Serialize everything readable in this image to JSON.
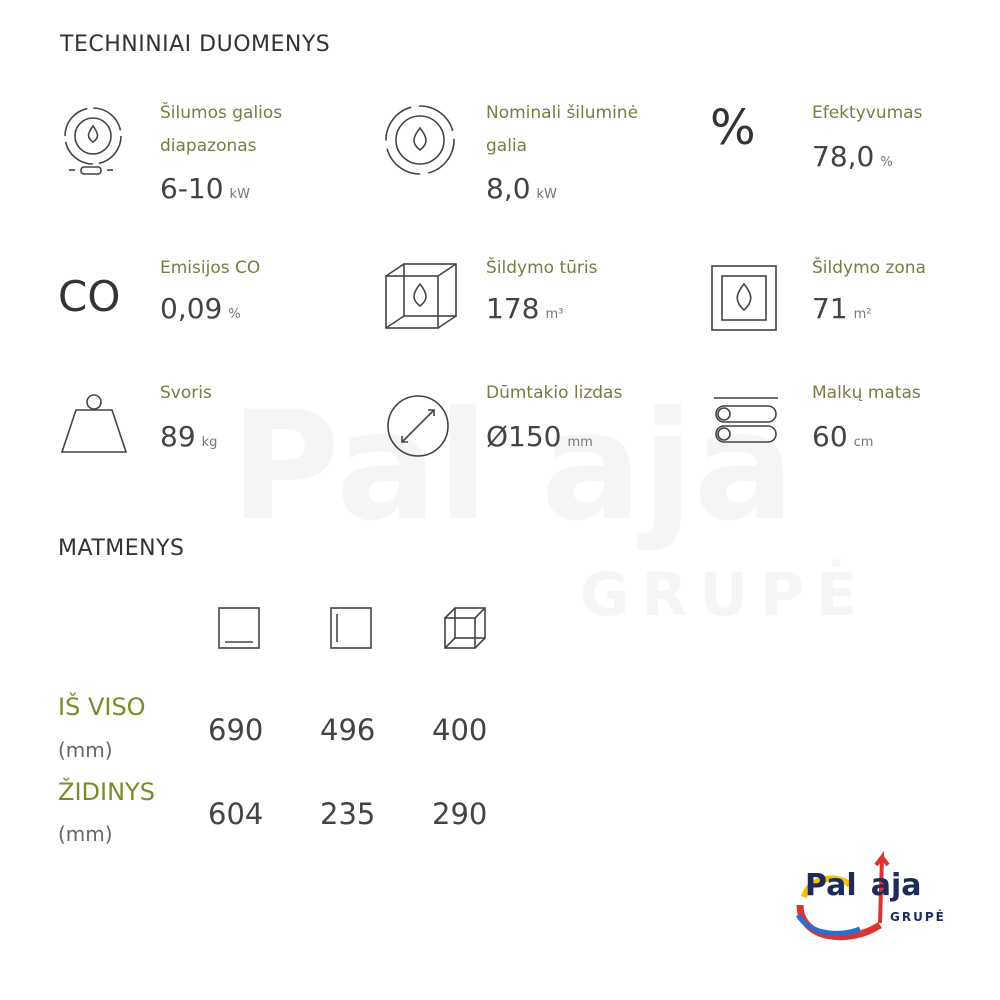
{
  "header": {
    "title": "TECHNINIAI DUOMENYS"
  },
  "specs": [
    {
      "label": "Šilumos galios diapazonas",
      "value": "6-10",
      "unit": "kW"
    },
    {
      "label": "Nominali šiluminė galia",
      "value": "8,0",
      "unit": "kW"
    },
    {
      "icon_text": "%",
      "label": "Efektyvumas",
      "value": "78,0",
      "unit": "%"
    },
    {
      "icon_text": "CO",
      "label": "Emisijos CO",
      "value": "0,09",
      "unit": "%"
    },
    {
      "label": "Šildymo tūris",
      "value": "178",
      "unit": "m³"
    },
    {
      "label": "Šildymo zona",
      "value": "71",
      "unit": "m²"
    },
    {
      "label": "Svoris",
      "value": "89",
      "unit": "kg"
    },
    {
      "label": "Dūmtakio lizdas",
      "value": "Ø150",
      "unit": "mm"
    },
    {
      "label": "Malkų matas",
      "value": "60",
      "unit": "cm"
    }
  ],
  "dimensions": {
    "title": "MATMENYS",
    "rows": [
      {
        "label": "IŠ VISO",
        "unit": "(mm)",
        "values": [
          690,
          496,
          400
        ]
      },
      {
        "label": "ŽIDINYS",
        "unit": "(mm)",
        "values": [
          604,
          235,
          290
        ]
      }
    ]
  },
  "logo": {
    "part1": "Pal",
    "part2": "aja",
    "subtitle": "GRUPĖ"
  }
}
